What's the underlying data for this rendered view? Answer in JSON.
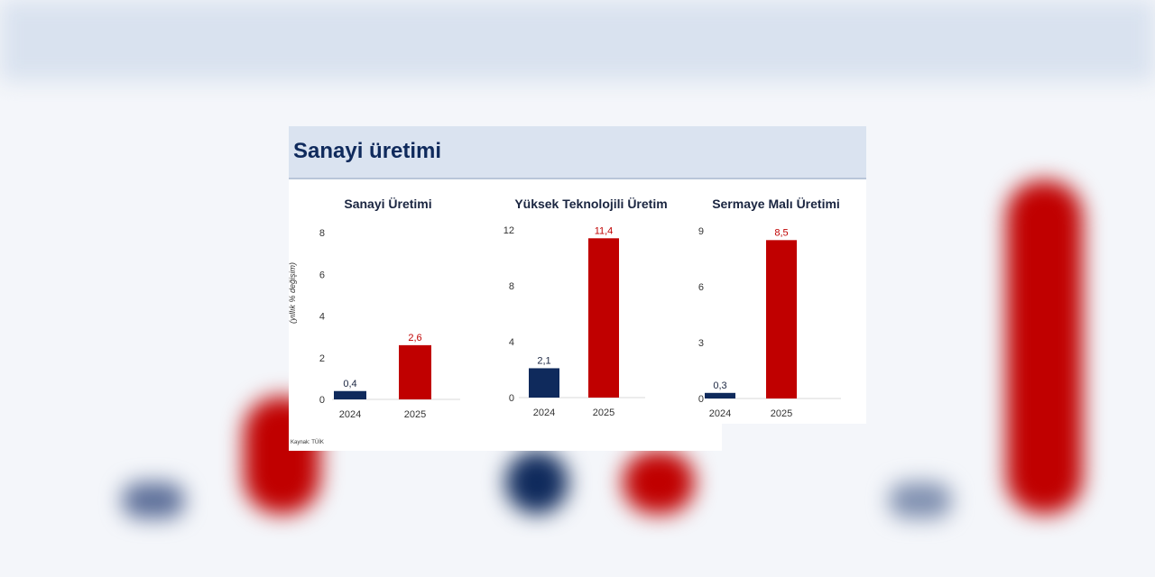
{
  "header": {
    "title": "Sanayi üretimi"
  },
  "source": "Kaynak: TÜİK",
  "colors": {
    "y2024": "#0f2a5c",
    "y2025": "#c00000",
    "header_bg": "#dae3f0"
  },
  "chart_data": [
    {
      "type": "bar",
      "title": "Sanayi Üretimi",
      "ylabel": "(yıllık % değişim)",
      "categories": [
        "2024",
        "2025"
      ],
      "values": [
        0.4,
        2.6
      ],
      "labels": [
        "0,4",
        "2,6"
      ],
      "ylim": [
        0,
        8
      ],
      "yticks": [
        "0",
        "2",
        "4",
        "6",
        "8"
      ],
      "ytick_values": [
        0,
        2,
        4,
        6,
        8
      ]
    },
    {
      "type": "bar",
      "title": "Yüksek Teknolojili Üretim",
      "ylabel": "",
      "categories": [
        "2024",
        "2025"
      ],
      "values": [
        2.1,
        11.4
      ],
      "labels": [
        "2,1",
        "11,4"
      ],
      "ylim": [
        0,
        12
      ],
      "yticks": [
        "0",
        "4",
        "8",
        "12"
      ],
      "ytick_values": [
        0,
        4,
        8,
        12
      ]
    },
    {
      "type": "bar",
      "title": "Sermaye Malı Üretimi",
      "ylabel": "",
      "categories": [
        "2024",
        "2025"
      ],
      "values": [
        0.3,
        8.5
      ],
      "labels": [
        "0,3",
        "8,5"
      ],
      "ylim": [
        0,
        9
      ],
      "yticks": [
        "0",
        "3",
        "6",
        "9"
      ],
      "ytick_values": [
        0,
        3,
        6,
        9
      ]
    }
  ]
}
